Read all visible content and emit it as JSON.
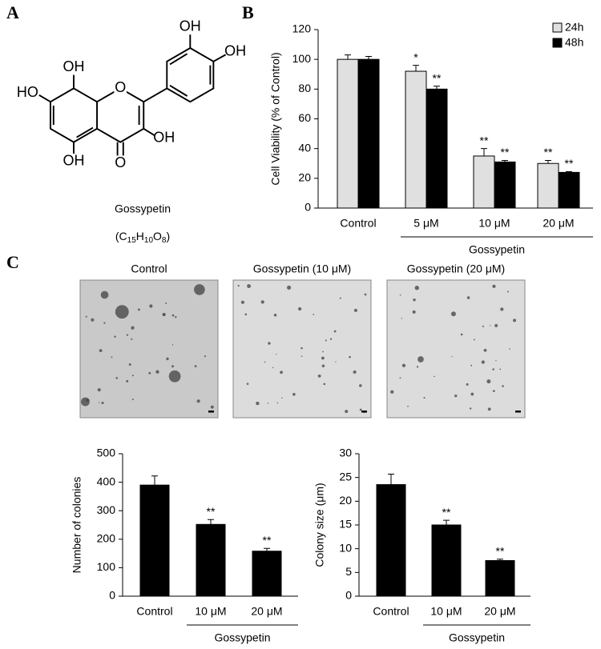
{
  "panels": [
    "A",
    "B",
    "C"
  ],
  "structure": {
    "atoms": [
      "OH",
      "OH",
      "OH",
      "O",
      "HO",
      "OH",
      "OH",
      "O"
    ],
    "name": "Gossypetin",
    "formula": [
      "(C",
      "15",
      "H",
      "10",
      "O",
      "8",
      ")"
    ]
  },
  "images": [
    "Control",
    "Gossypetin (10 μM)",
    "Gossypetin (20 μM)"
  ],
  "chart_data": [
    {
      "type": "bar",
      "y_label": "Cell Viability (% of Control)",
      "categories": [
        "Control",
        "5 μM",
        "10 μM",
        "20 μM"
      ],
      "group_label": "Gossypetin",
      "series": [
        {
          "name": "24h",
          "color": "#e0e0e0",
          "values": [
            100,
            92,
            35,
            30
          ],
          "errors": [
            3,
            4,
            5,
            2
          ],
          "annotations": [
            null,
            "*",
            "**",
            "**"
          ]
        },
        {
          "name": "48h",
          "color": "#000000",
          "values": [
            100,
            80,
            31,
            24
          ],
          "errors": [
            2,
            2,
            1,
            0.5
          ],
          "annotations": [
            null,
            "**",
            "**",
            "**"
          ]
        }
      ],
      "ylim": [
        0,
        120
      ],
      "yticks": [
        0,
        20,
        40,
        60,
        80,
        100,
        120
      ],
      "legend": "top-right"
    },
    {
      "type": "bar",
      "y_label": "Number of colonies",
      "categories": [
        "Control",
        "10 μM",
        "20 μM"
      ],
      "group_label": "Gossypetin",
      "color": "#000000",
      "values": [
        390,
        252,
        158
      ],
      "errors": [
        32,
        17,
        10
      ],
      "annotations": [
        null,
        "**",
        "**"
      ],
      "ylim": [
        0,
        500
      ],
      "yticks": [
        0,
        100,
        200,
        300,
        400,
        500
      ]
    },
    {
      "type": "bar",
      "y_label": "Colony size (μm)",
      "categories": [
        "Control",
        "10 μM",
        "20 μM"
      ],
      "group_label": "Gossypetin",
      "color": "#000000",
      "values": [
        23.5,
        15,
        7.5
      ],
      "errors": [
        2.2,
        1,
        0.3
      ],
      "annotations": [
        null,
        "**",
        "**"
      ],
      "ylim": [
        0,
        30
      ],
      "yticks": [
        0,
        5,
        10,
        15,
        20,
        25,
        30
      ]
    }
  ]
}
